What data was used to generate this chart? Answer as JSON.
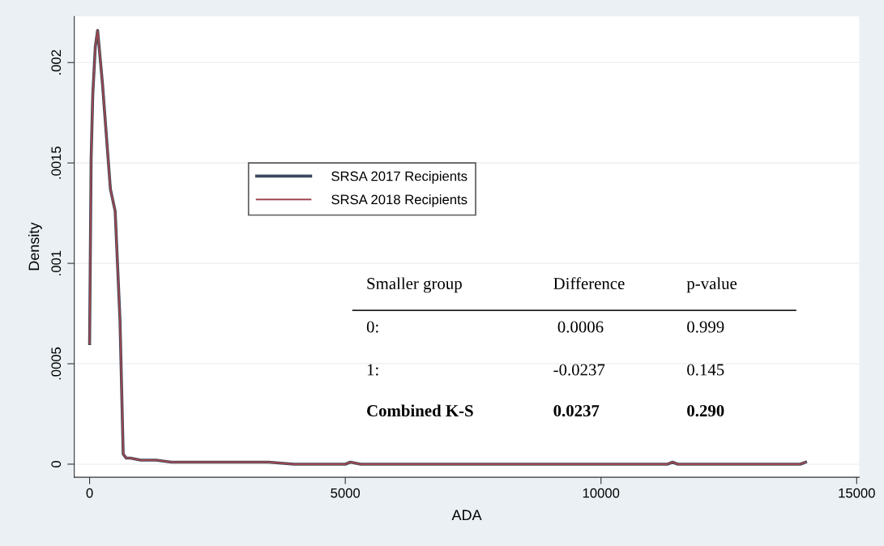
{
  "chart_data": {
    "type": "line",
    "xlabel": "ADA",
    "ylabel": "Density",
    "x": [
      0,
      30,
      62,
      112,
      157,
      250,
      407,
      500,
      594,
      657,
      718,
      800,
      1000,
      1300,
      1600,
      2000,
      2500,
      3000,
      3500,
      4000,
      5000,
      5100,
      5300,
      11300,
      11400,
      11500,
      13900,
      14000
    ],
    "series": [
      {
        "name": "SRSA 2017 Recipients",
        "color": "#3a4a5c",
        "values": [
          0.0006,
          0.00152,
          0.00184,
          0.00208,
          0.00216,
          0.0019,
          0.00137,
          0.00126,
          0.00072,
          5e-05,
          3e-05,
          3e-05,
          2e-05,
          2e-05,
          1e-05,
          1e-05,
          1e-05,
          1e-05,
          1e-05,
          0,
          0,
          1e-05,
          0,
          0,
          1e-05,
          0,
          0,
          1e-05
        ]
      },
      {
        "name": "SRSA 2018 Recipients",
        "color": "#a0474f",
        "values": [
          0.0006,
          0.00152,
          0.00184,
          0.00208,
          0.00216,
          0.0019,
          0.00137,
          0.00126,
          0.00072,
          5e-05,
          3e-05,
          3e-05,
          2e-05,
          2e-05,
          1e-05,
          1e-05,
          1e-05,
          1e-05,
          1e-05,
          0,
          0,
          1e-05,
          0,
          0,
          1e-05,
          0,
          0,
          1e-05
        ]
      }
    ],
    "xlim": [
      -300,
      15050
    ],
    "xticks": [
      0,
      5000,
      10000,
      15000
    ],
    "ylim": [
      -6.5e-05,
      0.00223
    ],
    "yticks": [
      0,
      {
        "value": 0.0005,
        "label": ".0005"
      },
      {
        "value": 0.001,
        "label": ".001"
      },
      {
        "value": 0.0015,
        "label": ".0015"
      },
      {
        "value": 0.002,
        "label": ".002"
      }
    ],
    "grid": "y",
    "legend": "center left",
    "annotations": [
      "Smaller group",
      "Difference",
      "p-value",
      "0:",
      " 0.0006",
      "0.999",
      "1:",
      "-0.0237",
      "0.145",
      "Combined K-S",
      "0.0237",
      "0.290"
    ]
  }
}
